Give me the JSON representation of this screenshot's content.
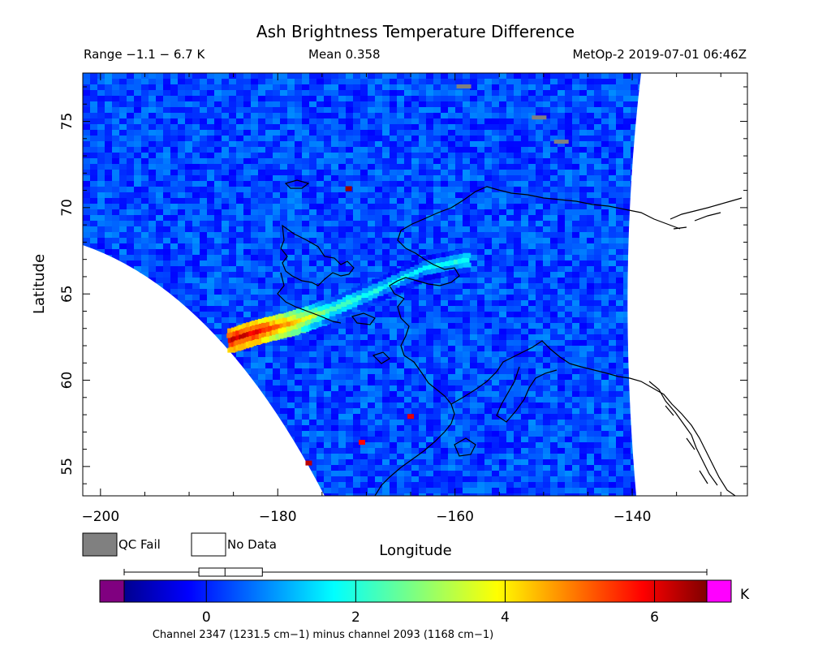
{
  "title": "Ash Brightness Temperature Difference",
  "header": {
    "range": "Range −1.1 − 6.7 K",
    "mean": "Mean 0.358",
    "source": "MetOp-2 2019-07-01 06:46Z"
  },
  "axes": {
    "xlabel": "Longitude",
    "ylabel": "Latitude",
    "x_range": [
      -202,
      -127
    ],
    "y_range": [
      53.3,
      77.8
    ],
    "x_ticks": [
      {
        "value": -200,
        "label": "−200"
      },
      {
        "value": -180,
        "label": "−180"
      },
      {
        "value": -160,
        "label": "−160"
      },
      {
        "value": -140,
        "label": "−140"
      }
    ],
    "y_ticks": [
      {
        "value": 55,
        "label": "55"
      },
      {
        "value": 60,
        "label": "60"
      },
      {
        "value": 65,
        "label": "65"
      },
      {
        "value": 70,
        "label": "70"
      },
      {
        "value": 75,
        "label": "75"
      }
    ]
  },
  "legend": {
    "qc_fail": {
      "label": "QC Fail",
      "color": "#808080"
    },
    "no_data": {
      "label": "No Data",
      "color": "#ffffff"
    }
  },
  "colorbar": {
    "range": [
      -1.1,
      6.7
    ],
    "unit": "K",
    "under_color": "#800080",
    "over_color": "#ff00ff",
    "ticks": [
      {
        "value": 0,
        "label": "0"
      },
      {
        "value": 2,
        "label": "2"
      },
      {
        "value": 4,
        "label": "4"
      },
      {
        "value": 6,
        "label": "6"
      }
    ],
    "caption": "Channel 2347 (1231.5 cm−1) minus channel 2093 (1168 cm−1)"
  },
  "boxplot": {
    "min": -1.1,
    "q1": -0.1,
    "median": 0.25,
    "q3": 0.75,
    "max": 6.7
  },
  "chart_data": {
    "type": "heatmap",
    "title": "Ash Brightness Temperature Difference",
    "xlabel": "Longitude",
    "ylabel": "Latitude",
    "xlim": [
      -202,
      -127
    ],
    "ylim": [
      53.3,
      77.8
    ],
    "value_range": [
      -1.1,
      6.7
    ],
    "mean": 0.358,
    "unit": "K",
    "background_value": 0.3,
    "ash_plume": {
      "description_points": [
        {
          "lon": -185,
          "lat": 62.3,
          "value": 6.2
        },
        {
          "lon": -182,
          "lat": 62.8,
          "value": 6.0
        },
        {
          "lon": -178,
          "lat": 63.3,
          "value": 4.5
        },
        {
          "lon": -174,
          "lat": 64.0,
          "value": 2.5
        },
        {
          "lon": -168,
          "lat": 65.3,
          "value": 1.8
        },
        {
          "lon": -163,
          "lat": 66.5,
          "value": 1.6
        },
        {
          "lon": -158,
          "lat": 67.0,
          "value": 2.0
        }
      ]
    },
    "qc_fail_cells": [
      {
        "lon": -159,
        "lat": 77.0
      },
      {
        "lon": -150.5,
        "lat": 75.2
      },
      {
        "lon": -148,
        "lat": 73.8
      }
    ],
    "hot_spots": [
      {
        "lon": -172,
        "lat": 71.1,
        "value": 6.5
      },
      {
        "lon": -165,
        "lat": 57.9,
        "value": 6.0
      },
      {
        "lon": -170.5,
        "lat": 56.4,
        "value": 5.8
      },
      {
        "lon": -176.5,
        "lat": 55.2,
        "value": 6.3
      }
    ]
  }
}
